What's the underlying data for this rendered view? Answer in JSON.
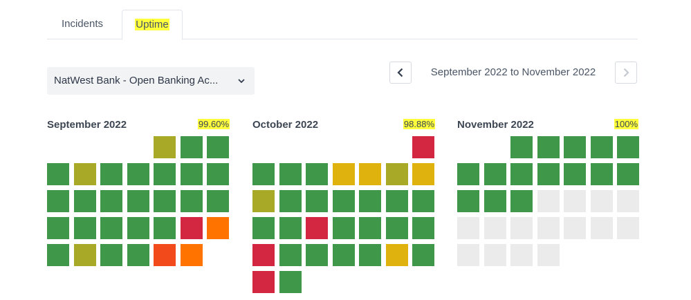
{
  "tabs": [
    {
      "label": "Incidents"
    },
    {
      "label": "Uptime",
      "active": true
    }
  ],
  "service_select": {
    "value": "NatWest Bank - Open Banking Ac..."
  },
  "date_range": {
    "label": "September 2022 to November 2022"
  },
  "icons": {
    "prev": "chevron-left-icon",
    "next": "chevron-right-icon",
    "dropdown": "chevron-down-icon"
  },
  "colors": {
    "green": "#3f974a",
    "olive": "#a8a927",
    "yellow": "#dfb20e",
    "orange": "#ff7300",
    "red_orange": "#f34a1c",
    "red": "#d32641",
    "empty": "#ebebeb",
    "highlight": "#ffff3b"
  },
  "months": [
    {
      "name": "September 2022",
      "uptime": "99.60%",
      "start_offset": 4,
      "days": [
        "olive",
        "green",
        "green",
        "green",
        "olive",
        "green",
        "green",
        "green",
        "green",
        "green",
        "green",
        "green",
        "green",
        "green",
        "green",
        "green",
        "green",
        "green",
        "green",
        "green",
        "green",
        "green",
        "red",
        "orange",
        "green",
        "olive",
        "green",
        "green",
        "red_orange",
        "orange"
      ]
    },
    {
      "name": "October 2022",
      "uptime": "98.88%",
      "start_offset": 6,
      "days": [
        "red",
        "green",
        "green",
        "green",
        "yellow",
        "yellow",
        "olive",
        "yellow",
        "olive",
        "green",
        "green",
        "green",
        "green",
        "green",
        "green",
        "green",
        "green",
        "red",
        "green",
        "green",
        "green",
        "green",
        "red",
        "green",
        "green",
        "green",
        "green",
        "yellow",
        "green",
        "red",
        "green"
      ]
    },
    {
      "name": "November 2022",
      "uptime": "100%",
      "start_offset": 2,
      "days": [
        "green",
        "green",
        "green",
        "green",
        "green",
        "green",
        "green",
        "green",
        "green",
        "green",
        "green",
        "green",
        "green",
        "green",
        "green",
        "empty",
        "empty",
        "empty",
        "empty",
        "empty",
        "empty",
        "empty",
        "empty",
        "empty",
        "empty",
        "empty",
        "empty",
        "empty",
        "empty",
        "empty"
      ]
    }
  ]
}
